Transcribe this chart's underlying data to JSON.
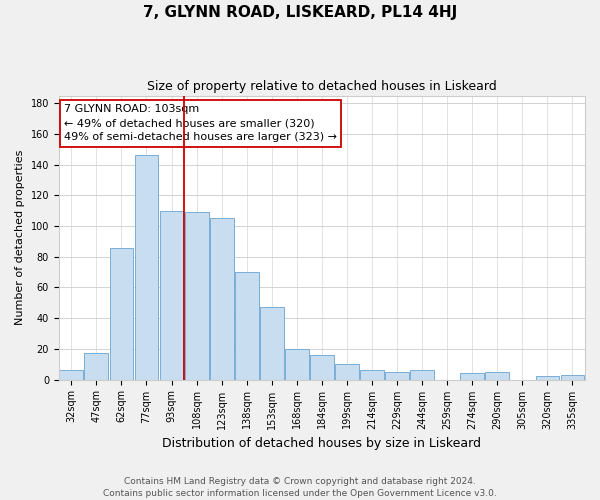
{
  "title": "7, GLYNN ROAD, LISKEARD, PL14 4HJ",
  "subtitle": "Size of property relative to detached houses in Liskeard",
  "xlabel": "Distribution of detached houses by size in Liskeard",
  "ylabel": "Number of detached properties",
  "bar_labels": [
    "32sqm",
    "47sqm",
    "62sqm",
    "77sqm",
    "93sqm",
    "108sqm",
    "123sqm",
    "138sqm",
    "153sqm",
    "168sqm",
    "184sqm",
    "199sqm",
    "214sqm",
    "229sqm",
    "244sqm",
    "259sqm",
    "274sqm",
    "290sqm",
    "305sqm",
    "320sqm",
    "335sqm"
  ],
  "bar_values": [
    6,
    17,
    86,
    146,
    110,
    109,
    105,
    70,
    47,
    20,
    16,
    10,
    6,
    5,
    6,
    0,
    4,
    5,
    0,
    2,
    3
  ],
  "bar_color": "#c8ddf0",
  "bar_edge_color": "#7aadd4",
  "vline_x": 4.5,
  "vline_color": "#cc0000",
  "ylim": [
    0,
    185
  ],
  "yticks": [
    0,
    20,
    40,
    60,
    80,
    100,
    120,
    140,
    160,
    180
  ],
  "annotation_title": "7 GLYNN ROAD: 103sqm",
  "annotation_line1": "← 49% of detached houses are smaller (320)",
  "annotation_line2": "49% of semi-detached houses are larger (323) →",
  "footer_line1": "Contains HM Land Registry data © Crown copyright and database right 2024.",
  "footer_line2": "Contains public sector information licensed under the Open Government Licence v3.0.",
  "bg_color": "#f0f0f0",
  "plot_bg_color": "#ffffff",
  "grid_color": "#cccccc",
  "title_fontsize": 11,
  "subtitle_fontsize": 9,
  "ylabel_fontsize": 8,
  "xlabel_fontsize": 9,
  "tick_fontsize": 7,
  "annotation_fontsize": 8,
  "footer_fontsize": 6.5
}
